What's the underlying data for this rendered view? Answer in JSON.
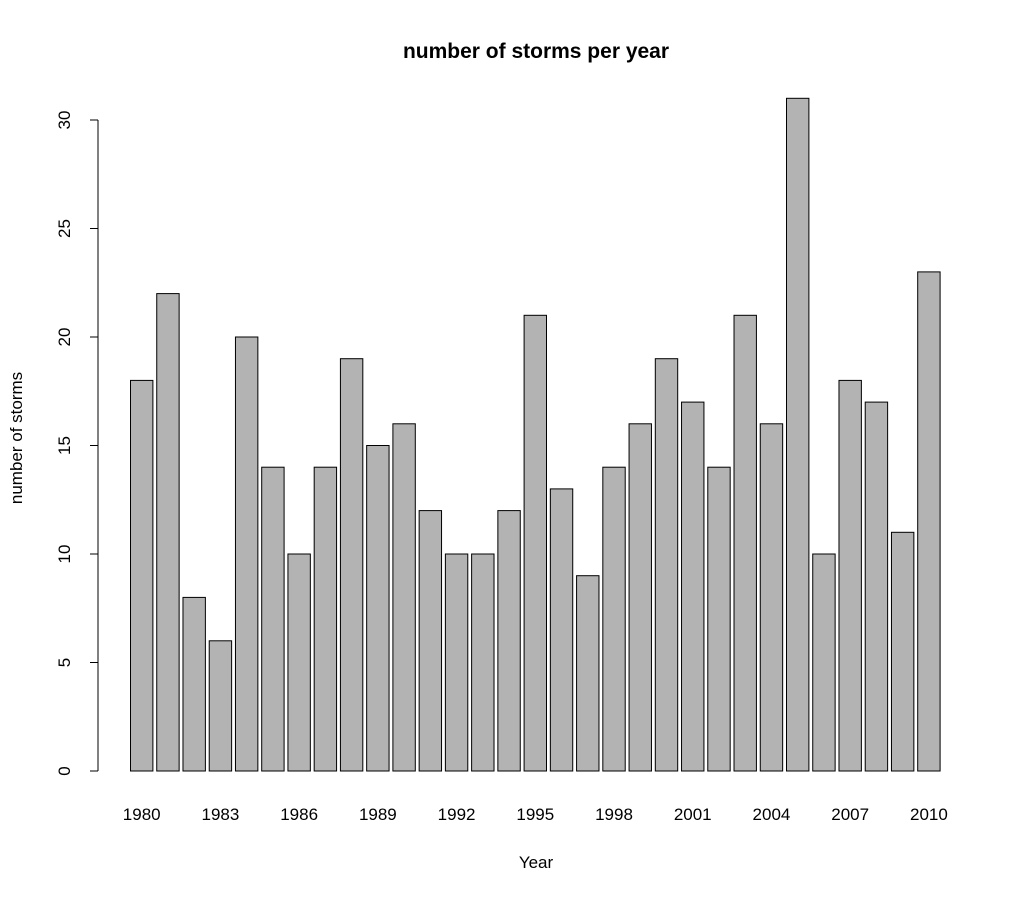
{
  "chart_data": {
    "type": "bar",
    "title": "number of storms per year",
    "xlabel": "Year",
    "ylabel": "number of storms",
    "categories": [
      "1980",
      "1981",
      "1982",
      "1983",
      "1984",
      "1985",
      "1986",
      "1987",
      "1988",
      "1989",
      "1990",
      "1991",
      "1992",
      "1993",
      "1994",
      "1995",
      "1996",
      "1997",
      "1998",
      "1999",
      "2000",
      "2001",
      "2002",
      "2003",
      "2004",
      "2005",
      "2006",
      "2007",
      "2008",
      "2009",
      "2010"
    ],
    "x_tick_labels": [
      "1980",
      "1983",
      "1986",
      "1989",
      "1992",
      "1995",
      "1998",
      "2001",
      "2004",
      "2007",
      "2010"
    ],
    "values": [
      18,
      22,
      8,
      6,
      20,
      14,
      10,
      14,
      19,
      15,
      16,
      12,
      10,
      10,
      12,
      21,
      13,
      9,
      14,
      16,
      19,
      17,
      14,
      21,
      16,
      31,
      10,
      18,
      17,
      11,
      23
    ],
    "y_ticks": [
      0,
      5,
      10,
      15,
      20,
      25,
      30
    ],
    "ylim": [
      0,
      30
    ],
    "grid": false,
    "bar_color": "#b3b3b3",
    "bar_edge_color": "#000000"
  }
}
